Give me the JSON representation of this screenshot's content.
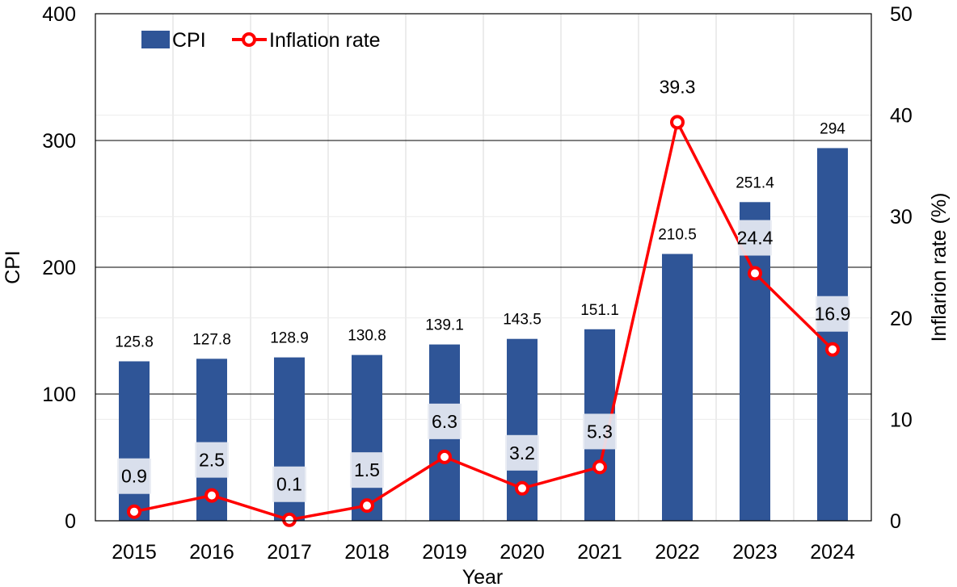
{
  "chart_data": {
    "type": "bar",
    "categories": [
      "2015",
      "2016",
      "2017",
      "2018",
      "2019",
      "2020",
      "2021",
      "2022",
      "2023",
      "2024"
    ],
    "series": [
      {
        "name": "CPI",
        "type": "bar",
        "axis": "left",
        "color": "#2f5597",
        "values": [
          125.8,
          127.8,
          128.9,
          130.8,
          139.1,
          143.5,
          151.1,
          210.5,
          251.4,
          294
        ],
        "labels": [
          "125.8",
          "127.8",
          "128.9",
          "130.8",
          "139.1",
          "143.5",
          "151.1",
          "210.5",
          "251.4",
          "294"
        ]
      },
      {
        "name": "Inflation rate",
        "type": "line",
        "axis": "right",
        "color": "#ff0000",
        "values": [
          0.9,
          2.5,
          0.1,
          1.5,
          6.3,
          3.2,
          5.3,
          39.3,
          24.4,
          16.9
        ],
        "labels": [
          "0.9",
          "2.5",
          "0.1",
          "1.5",
          "6.3",
          "3.2",
          "5.3",
          "39.3",
          "24.4",
          "16.9"
        ]
      }
    ],
    "xlabel": "Year",
    "ylabel": "CPI",
    "y2label": "Inflarion rate (%)",
    "ylim": [
      0,
      400
    ],
    "y2lim": [
      0,
      50
    ],
    "yticks": [
      "0",
      "100",
      "200",
      "300",
      "400"
    ],
    "y2ticks": [
      "0",
      "10",
      "20",
      "30",
      "40",
      "50"
    ],
    "grid": true,
    "legend_position": "top-left"
  }
}
